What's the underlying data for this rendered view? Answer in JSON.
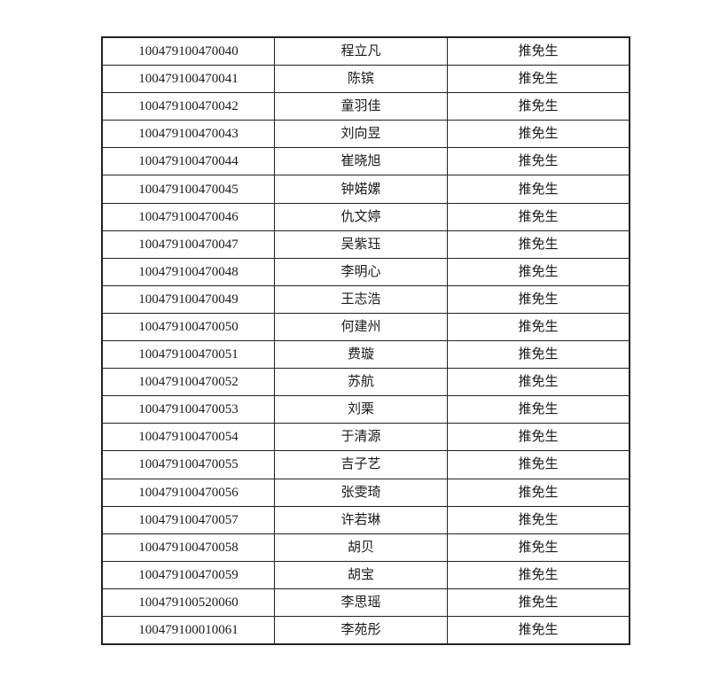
{
  "table": {
    "rows": [
      [
        "100479100470040",
        "程立凡",
        "推免生"
      ],
      [
        "100479100470041",
        "陈镔",
        "推免生"
      ],
      [
        "100479100470042",
        "童羽佳",
        "推免生"
      ],
      [
        "100479100470043",
        "刘向昱",
        "推免生"
      ],
      [
        "100479100470044",
        "崔晓旭",
        "推免生"
      ],
      [
        "100479100470045",
        "钟婼嫘",
        "推免生"
      ],
      [
        "100479100470046",
        "仇文婷",
        "推免生"
      ],
      [
        "100479100470047",
        "吴紫珏",
        "推免生"
      ],
      [
        "100479100470048",
        "李明心",
        "推免生"
      ],
      [
        "100479100470049",
        "王志浩",
        "推免生"
      ],
      [
        "100479100470050",
        "何建州",
        "推免生"
      ],
      [
        "100479100470051",
        "费璇",
        "推免生"
      ],
      [
        "100479100470052",
        "苏航",
        "推免生"
      ],
      [
        "100479100470053",
        "刘栗",
        "推免生"
      ],
      [
        "100479100470054",
        "于清源",
        "推免生"
      ],
      [
        "100479100470055",
        "吉子艺",
        "推免生"
      ],
      [
        "100479100470056",
        "张雯琦",
        "推免生"
      ],
      [
        "100479100470057",
        "许若琳",
        "推免生"
      ],
      [
        "100479100470058",
        "胡贝",
        "推免生"
      ],
      [
        "100479100470059",
        "胡宝",
        "推免生"
      ],
      [
        "100479100520060",
        "李思瑶",
        "推免生"
      ],
      [
        "100479100010061",
        "李苑彤",
        "推免生"
      ]
    ]
  }
}
